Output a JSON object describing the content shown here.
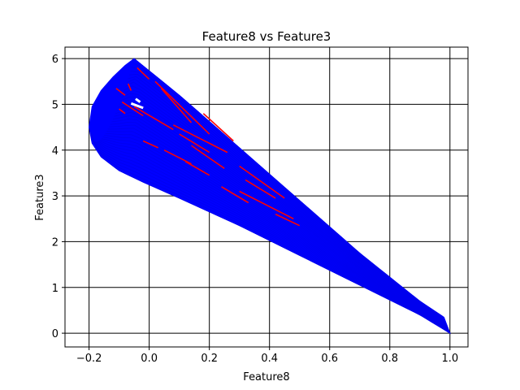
{
  "chart_data": {
    "type": "line",
    "title": "Feature8 vs Feature3",
    "xlabel": "Feature8",
    "ylabel": "Feature3",
    "xlim": [
      -0.28,
      1.06
    ],
    "ylim": [
      -0.3,
      6.25
    ],
    "xticks": [
      -0.2,
      0.0,
      0.2,
      0.4,
      0.6,
      0.8,
      1.0
    ],
    "xtick_labels": [
      "−0.2",
      "0.0",
      "0.2",
      "0.4",
      "0.6",
      "0.8",
      "1.0"
    ],
    "yticks": [
      0,
      1,
      2,
      3,
      4,
      5,
      6
    ],
    "ytick_labels": [
      "0",
      "1",
      "2",
      "3",
      "4",
      "5",
      "6"
    ],
    "grid": true,
    "series": [
      {
        "color": "#0000ff",
        "description": "Dense family of curves sweeping from around (-0.05, 6.0) and (-0.2, 4.5) down to (1.0, 0.0)",
        "upper_boundary": [
          [
            -0.2,
            4.5
          ],
          [
            -0.19,
            4.95
          ],
          [
            -0.16,
            5.3
          ],
          [
            -0.12,
            5.6
          ],
          [
            -0.08,
            5.85
          ],
          [
            -0.05,
            6.0
          ],
          [
            0.1,
            5.2
          ],
          [
            0.3,
            4.05
          ],
          [
            0.5,
            2.9
          ],
          [
            0.7,
            1.75
          ],
          [
            0.9,
            0.7
          ],
          [
            0.98,
            0.35
          ],
          [
            1.0,
            0.0
          ]
        ],
        "lower_boundary": [
          [
            -0.2,
            4.5
          ],
          [
            -0.19,
            4.15
          ],
          [
            -0.16,
            3.85
          ],
          [
            -0.1,
            3.55
          ],
          [
            -0.02,
            3.3
          ],
          [
            0.1,
            2.95
          ],
          [
            0.3,
            2.35
          ],
          [
            0.5,
            1.7
          ],
          [
            0.7,
            1.05
          ],
          [
            0.9,
            0.4
          ],
          [
            1.0,
            0.0
          ]
        ]
      },
      {
        "color": "#ff0000",
        "description": "Sparse red segments interleaved within the blue band",
        "segments": [
          [
            [
              -0.04,
              5.8
            ],
            [
              0.0,
              5.55
            ]
          ],
          [
            [
              0.02,
              5.5
            ],
            [
              0.2,
              4.35
            ]
          ],
          [
            [
              0.04,
              5.35
            ],
            [
              0.14,
              4.6
            ]
          ],
          [
            [
              -0.05,
              4.95
            ],
            [
              0.08,
              4.45
            ]
          ],
          [
            [
              0.08,
              4.55
            ],
            [
              0.26,
              3.95
            ]
          ],
          [
            [
              0.1,
              4.35
            ],
            [
              0.2,
              3.95
            ]
          ],
          [
            [
              0.05,
              4.0
            ],
            [
              0.14,
              3.7
            ]
          ],
          [
            [
              0.14,
              4.1
            ],
            [
              0.25,
              3.6
            ]
          ],
          [
            [
              0.3,
              3.65
            ],
            [
              0.45,
              2.95
            ]
          ],
          [
            [
              0.32,
              3.35
            ],
            [
              0.42,
              2.95
            ]
          ],
          [
            [
              0.3,
              3.1
            ],
            [
              0.48,
              2.5
            ]
          ],
          [
            [
              0.24,
              3.2
            ],
            [
              0.33,
              2.85
            ]
          ],
          [
            [
              -0.09,
              5.05
            ],
            [
              -0.02,
              4.75
            ]
          ],
          [
            [
              -0.1,
              4.9
            ],
            [
              -0.08,
              4.8
            ]
          ],
          [
            [
              0.18,
              4.8
            ],
            [
              0.28,
              4.2
            ]
          ],
          [
            [
              -0.02,
              4.2
            ],
            [
              0.03,
              4.05
            ]
          ],
          [
            [
              0.12,
              3.75
            ],
            [
              0.2,
              3.45
            ]
          ],
          [
            [
              0.42,
              2.6
            ],
            [
              0.5,
              2.35
            ]
          ],
          [
            [
              -0.11,
              5.35
            ],
            [
              -0.08,
              5.2
            ]
          ],
          [
            [
              -0.07,
              5.45
            ],
            [
              -0.06,
              5.3
            ]
          ]
        ]
      }
    ]
  }
}
